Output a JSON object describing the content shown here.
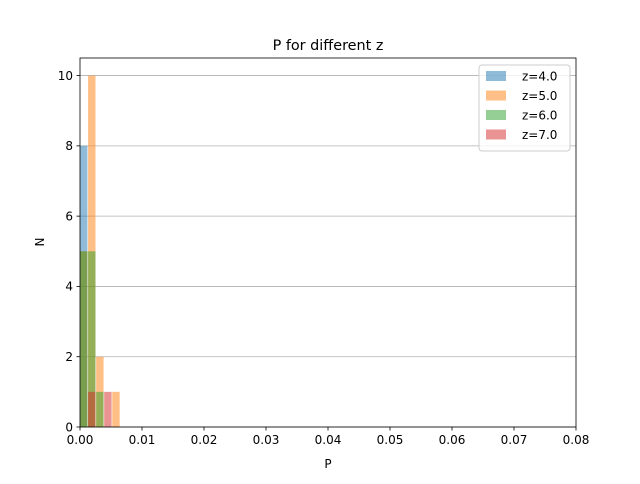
{
  "chart_data": {
    "type": "bar",
    "title": "P for different z",
    "xlabel": "P",
    "ylabel": "N",
    "xlim": [
      0.0,
      0.08
    ],
    "ylim": [
      0,
      10.5
    ],
    "xticks": [
      "0.00",
      "0.01",
      "0.02",
      "0.03",
      "0.04",
      "0.05",
      "0.06",
      "0.07",
      "0.08"
    ],
    "yticks": [
      "0",
      "2",
      "4",
      "6",
      "8",
      "10"
    ],
    "grid": "horizontal",
    "legend_position": "top-right",
    "series": [
      {
        "name": "z=4.0",
        "color": "#1f77b4",
        "bars": [
          {
            "x0": 0.0,
            "x1": 0.0012,
            "count": 8
          }
        ]
      },
      {
        "name": "z=5.0",
        "color": "#ff7f0e",
        "bars": [
          {
            "x0": 0.0,
            "x1": 0.0012,
            "count": 5
          },
          {
            "x0": 0.0013,
            "x1": 0.0025,
            "count": 10
          },
          {
            "x0": 0.0026,
            "x1": 0.0038,
            "count": 2
          },
          {
            "x0": 0.0052,
            "x1": 0.0064,
            "count": 1
          }
        ]
      },
      {
        "name": "z=6.0",
        "color": "#2ca02c",
        "bars": [
          {
            "x0": 0.0,
            "x1": 0.0012,
            "count": 5
          },
          {
            "x0": 0.0013,
            "x1": 0.0025,
            "count": 5
          },
          {
            "x0": 0.0026,
            "x1": 0.0038,
            "count": 1
          }
        ]
      },
      {
        "name": "z=7.0",
        "color": "#d62728",
        "bars": [
          {
            "x0": 0.0013,
            "x1": 0.0025,
            "count": 1
          },
          {
            "x0": 0.0039,
            "x1": 0.0051,
            "count": 1
          }
        ]
      }
    ]
  }
}
